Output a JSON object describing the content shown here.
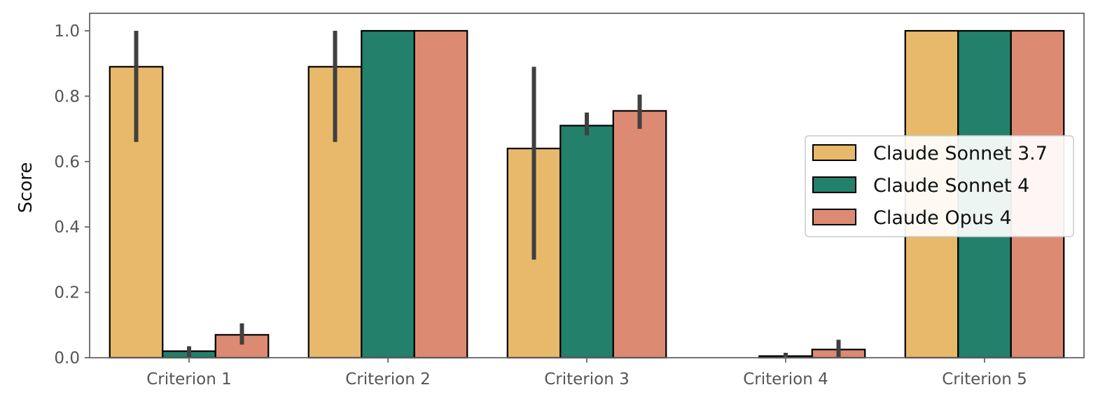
{
  "chart_data": {
    "type": "bar",
    "title": "",
    "xlabel": "",
    "ylabel": "Score",
    "ylim": [
      0,
      1.05
    ],
    "yticks": [
      "0.0",
      "0.2",
      "0.4",
      "0.6",
      "0.8",
      "1.0"
    ],
    "categories": [
      "Criterion 1",
      "Criterion 2",
      "Criterion 3",
      "Criterion 4",
      "Criterion 5"
    ],
    "legend_position": "center-right",
    "grid": false,
    "series": [
      {
        "name": "Claude Sonnet 3.7",
        "color": "#E8B96A",
        "values": [
          0.89,
          0.89,
          0.64,
          0.0,
          1.0
        ],
        "error_low": [
          0.66,
          0.66,
          0.3,
          null,
          null
        ],
        "error_high": [
          1.0,
          1.0,
          0.89,
          null,
          null
        ]
      },
      {
        "name": "Claude Sonnet 4",
        "color": "#23806A",
        "values": [
          0.02,
          1.0,
          0.71,
          0.005,
          1.0
        ],
        "error_low": [
          0.0,
          null,
          0.68,
          0.0,
          null
        ],
        "error_high": [
          0.035,
          null,
          0.75,
          0.015,
          null
        ]
      },
      {
        "name": "Claude Opus 4",
        "color": "#DD8A72",
        "values": [
          0.07,
          1.0,
          0.755,
          0.025,
          1.0
        ],
        "error_low": [
          0.04,
          null,
          0.7,
          0.0,
          null
        ],
        "error_high": [
          0.105,
          null,
          0.805,
          0.055,
          null
        ]
      }
    ]
  }
}
